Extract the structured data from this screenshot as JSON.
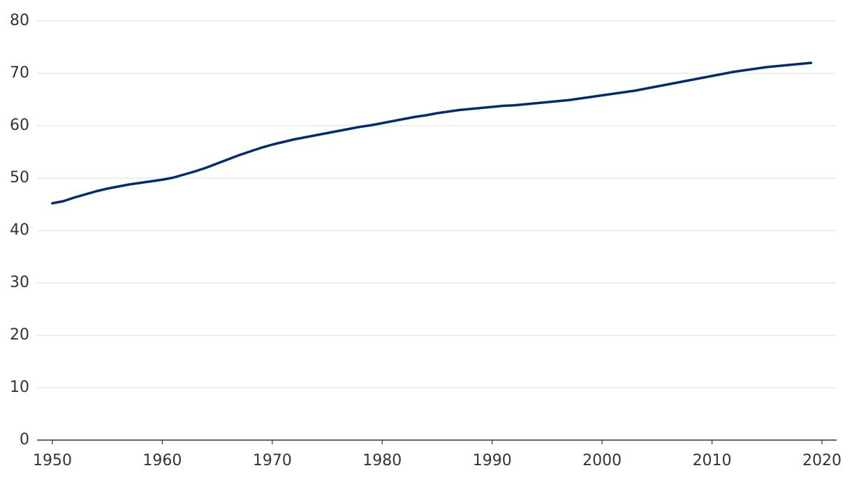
{
  "chart_data": {
    "type": "line",
    "x": [
      1950,
      1951,
      1952,
      1953,
      1954,
      1955,
      1956,
      1957,
      1958,
      1959,
      1960,
      1961,
      1962,
      1963,
      1964,
      1965,
      1966,
      1967,
      1968,
      1969,
      1970,
      1971,
      1972,
      1973,
      1974,
      1975,
      1976,
      1977,
      1978,
      1979,
      1980,
      1981,
      1982,
      1983,
      1984,
      1985,
      1986,
      1987,
      1988,
      1989,
      1990,
      1991,
      1992,
      1993,
      1994,
      1995,
      1996,
      1997,
      1998,
      1999,
      2000,
      2001,
      2002,
      2003,
      2004,
      2005,
      2006,
      2007,
      2008,
      2009,
      2010,
      2011,
      2012,
      2013,
      2014,
      2015,
      2016,
      2017,
      2018,
      2019
    ],
    "values": [
      45.2,
      45.6,
      46.3,
      46.9,
      47.5,
      48.0,
      48.4,
      48.8,
      49.1,
      49.4,
      49.7,
      50.1,
      50.7,
      51.3,
      52.0,
      52.8,
      53.6,
      54.4,
      55.1,
      55.8,
      56.4,
      56.9,
      57.4,
      57.8,
      58.2,
      58.6,
      59.0,
      59.4,
      59.8,
      60.1,
      60.5,
      60.9,
      61.3,
      61.7,
      62.0,
      62.4,
      62.7,
      63.0,
      63.2,
      63.4,
      63.6,
      63.8,
      63.9,
      64.1,
      64.3,
      64.5,
      64.7,
      64.9,
      65.2,
      65.5,
      65.8,
      66.1,
      66.4,
      66.7,
      67.1,
      67.5,
      67.9,
      68.3,
      68.7,
      69.1,
      69.5,
      69.9,
      70.3,
      70.6,
      70.9,
      71.2,
      71.4,
      71.6,
      71.8,
      72.0
    ],
    "color": "#002b6e",
    "xlim": [
      1950,
      2020
    ],
    "xticks": [
      1950,
      1960,
      1970,
      1980,
      1990,
      2000,
      2010,
      2020
    ],
    "ylim": [
      0,
      80
    ],
    "yticks": [
      0,
      10,
      20,
      30,
      40,
      50,
      60,
      70,
      80
    ],
    "grid": true
  }
}
